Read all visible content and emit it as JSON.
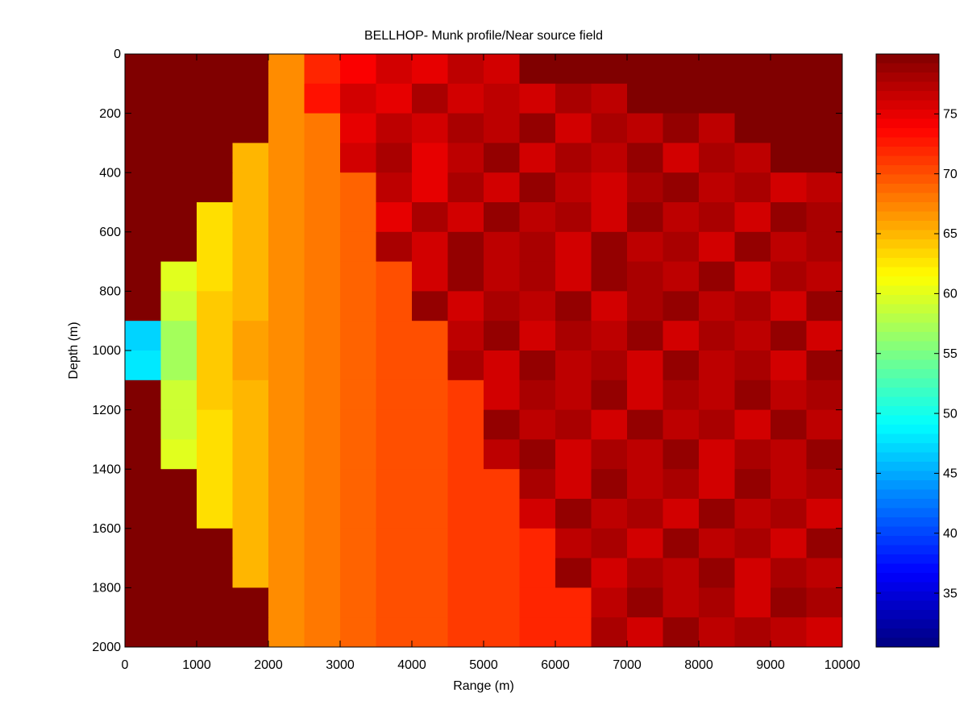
{
  "chart_data": {
    "type": "heatmap",
    "title": "BELLHOP- Munk profile/Near source field",
    "x_label": "Range (m)",
    "y_label": "Depth (m)",
    "xlim": [
      0,
      10000
    ],
    "ylim": [
      0,
      2000
    ],
    "y_reversed": true,
    "xticks": [
      0,
      1000,
      2000,
      3000,
      4000,
      5000,
      6000,
      7000,
      8000,
      9000,
      10000
    ],
    "yticks": [
      0,
      200,
      400,
      600,
      800,
      1000,
      1200,
      1400,
      1600,
      1800,
      2000
    ],
    "colormap": "jet",
    "clim": [
      30.5,
      80
    ],
    "cticks": [
      35,
      40,
      45,
      50,
      55,
      60,
      65,
      70,
      75
    ],
    "x": [
      250,
      750,
      1250,
      1750,
      2250,
      2750,
      3250,
      3750,
      4250,
      4750,
      5250,
      5750,
      6250,
      6750,
      7250,
      7750,
      8250,
      8750,
      9250,
      9750
    ],
    "y": [
      50,
      150,
      250,
      350,
      450,
      550,
      650,
      750,
      850,
      950,
      1050,
      1150,
      1250,
      1350,
      1450,
      1550,
      1650,
      1750,
      1850,
      1950
    ],
    "z": [
      [
        80,
        80,
        80,
        80,
        67,
        72,
        74,
        76,
        75,
        77,
        76,
        80,
        80,
        80,
        80,
        80,
        80,
        80,
        80,
        80
      ],
      [
        80,
        80,
        80,
        80,
        67,
        73,
        76,
        75,
        78,
        76,
        77,
        76,
        78,
        77,
        80,
        80,
        80,
        80,
        80,
        80
      ],
      [
        80,
        80,
        80,
        80,
        67,
        68,
        75,
        77,
        76,
        78,
        77,
        79,
        76,
        78,
        77,
        79,
        77,
        80,
        80,
        80
      ],
      [
        80,
        80,
        80,
        65,
        67,
        68,
        76,
        78,
        75,
        77,
        79,
        76,
        78,
        77,
        79,
        76,
        78,
        77,
        80,
        80
      ],
      [
        80,
        80,
        80,
        65,
        67,
        68,
        69,
        77,
        75,
        78,
        76,
        79,
        77,
        76,
        78,
        79,
        77,
        78,
        76,
        77
      ],
      [
        80,
        80,
        63,
        65,
        67,
        68,
        69,
        75,
        78,
        76,
        79,
        77,
        78,
        76,
        79,
        77,
        78,
        76,
        79,
        78
      ],
      [
        80,
        80,
        63,
        65,
        67,
        68,
        69,
        78,
        76,
        79,
        77,
        78,
        76,
        79,
        77,
        78,
        76,
        79,
        77,
        78
      ],
      [
        80,
        60,
        63,
        65,
        67,
        68,
        69,
        70,
        76,
        79,
        77,
        78,
        76,
        79,
        78,
        77,
        79,
        76,
        78,
        77
      ],
      [
        80,
        59,
        64,
        65,
        67,
        68,
        69,
        70,
        79,
        76,
        78,
        77,
        79,
        76,
        78,
        79,
        77,
        78,
        76,
        79
      ],
      [
        47,
        57,
        64,
        66,
        67,
        68,
        69,
        70,
        70,
        77,
        79,
        76,
        78,
        77,
        79,
        76,
        78,
        77,
        79,
        76
      ],
      [
        48,
        57,
        64,
        66,
        67,
        68,
        69,
        70,
        70,
        78,
        76,
        79,
        77,
        78,
        76,
        79,
        77,
        78,
        76,
        79
      ],
      [
        80,
        59,
        64,
        65,
        67,
        68,
        69,
        70,
        70,
        71,
        76,
        78,
        77,
        79,
        76,
        78,
        77,
        79,
        77,
        78
      ],
      [
        80,
        59,
        63,
        65,
        67,
        68,
        69,
        70,
        70,
        71,
        79,
        77,
        78,
        76,
        79,
        77,
        78,
        76,
        79,
        77
      ],
      [
        80,
        60,
        63,
        65,
        67,
        68,
        69,
        70,
        70,
        71,
        77,
        79,
        76,
        78,
        77,
        79,
        76,
        78,
        77,
        79
      ],
      [
        80,
        80,
        63,
        65,
        67,
        68,
        69,
        70,
        70,
        71,
        71,
        78,
        76,
        79,
        77,
        78,
        76,
        79,
        77,
        78
      ],
      [
        80,
        80,
        63,
        65,
        67,
        68,
        69,
        70,
        70,
        71,
        71,
        76,
        79,
        77,
        78,
        76,
        79,
        77,
        78,
        76
      ],
      [
        80,
        80,
        80,
        65,
        67,
        68,
        69,
        70,
        70,
        71,
        71,
        72,
        77,
        78,
        76,
        79,
        77,
        78,
        76,
        79
      ],
      [
        80,
        80,
        80,
        65,
        67,
        68,
        69,
        70,
        70,
        71,
        71,
        72,
        79,
        76,
        78,
        77,
        79,
        76,
        78,
        77
      ],
      [
        80,
        80,
        80,
        80,
        67,
        68,
        69,
        70,
        70,
        71,
        71,
        72,
        72,
        77,
        79,
        77,
        78,
        76,
        79,
        78
      ],
      [
        80,
        80,
        80,
        80,
        67,
        68,
        69,
        70,
        70,
        71,
        71,
        72,
        72,
        78,
        76,
        79,
        77,
        78,
        77,
        76
      ]
    ]
  }
}
